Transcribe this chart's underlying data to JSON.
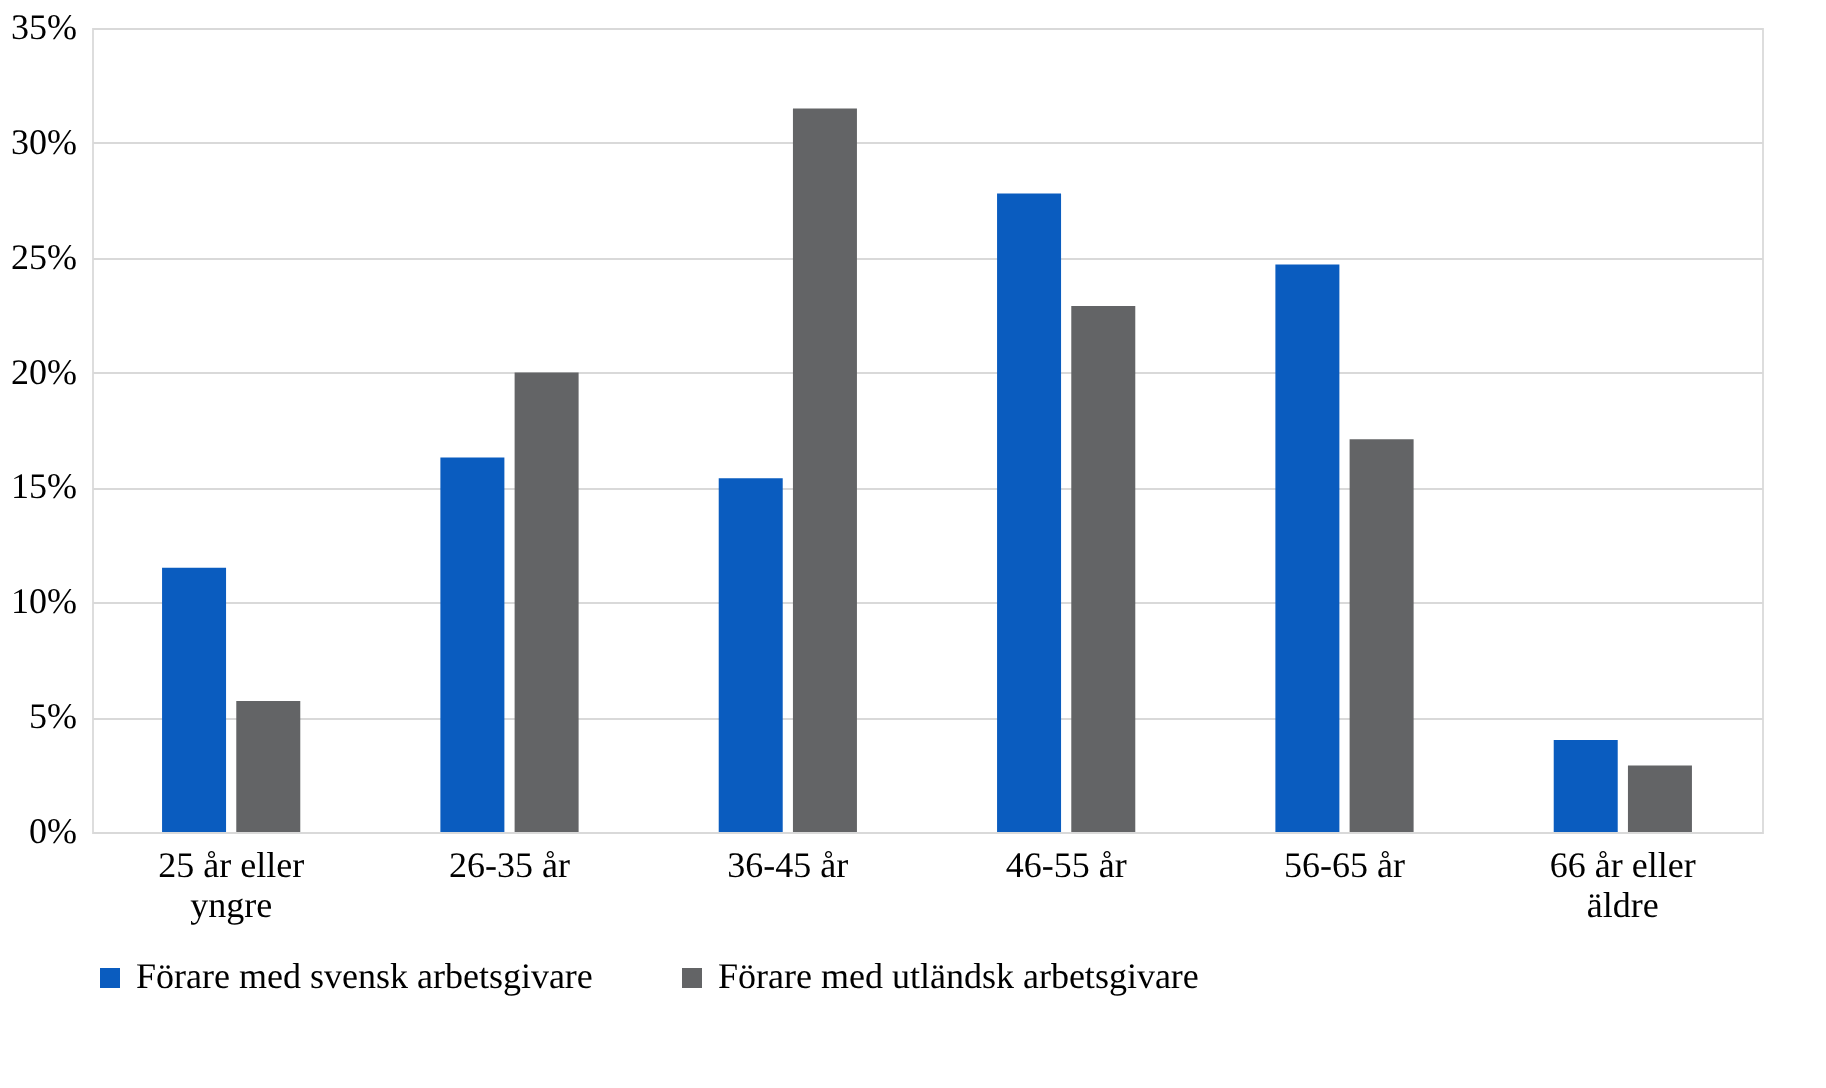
{
  "chart_data": {
    "type": "bar",
    "categories": [
      "25 år eller yngre",
      "26-35 år",
      "36-45 år",
      "46-55 år",
      "56-65 år",
      "66 år eller äldre"
    ],
    "series": [
      {
        "name": "Förare med svensk arbetsgivare",
        "color": "#0a5cbf",
        "values": [
          11.5,
          16.3,
          15.4,
          27.8,
          24.7,
          4.0
        ]
      },
      {
        "name": "Förare med utländsk arbetsgivare",
        "color": "#636466",
        "values": [
          5.7,
          20.0,
          31.5,
          22.9,
          17.1,
          2.9
        ]
      }
    ],
    "ylim": [
      0,
      35
    ],
    "yticks": [
      {
        "value": 0,
        "label": "0%"
      },
      {
        "value": 5,
        "label": "5%"
      },
      {
        "value": 10,
        "label": "10%"
      },
      {
        "value": 15,
        "label": "15%"
      },
      {
        "value": 20,
        "label": "20%"
      },
      {
        "value": 25,
        "label": "25%"
      },
      {
        "value": 30,
        "label": "30%"
      },
      {
        "value": 35,
        "label": "35%"
      }
    ],
    "grid": "y",
    "legend": "bottom"
  }
}
